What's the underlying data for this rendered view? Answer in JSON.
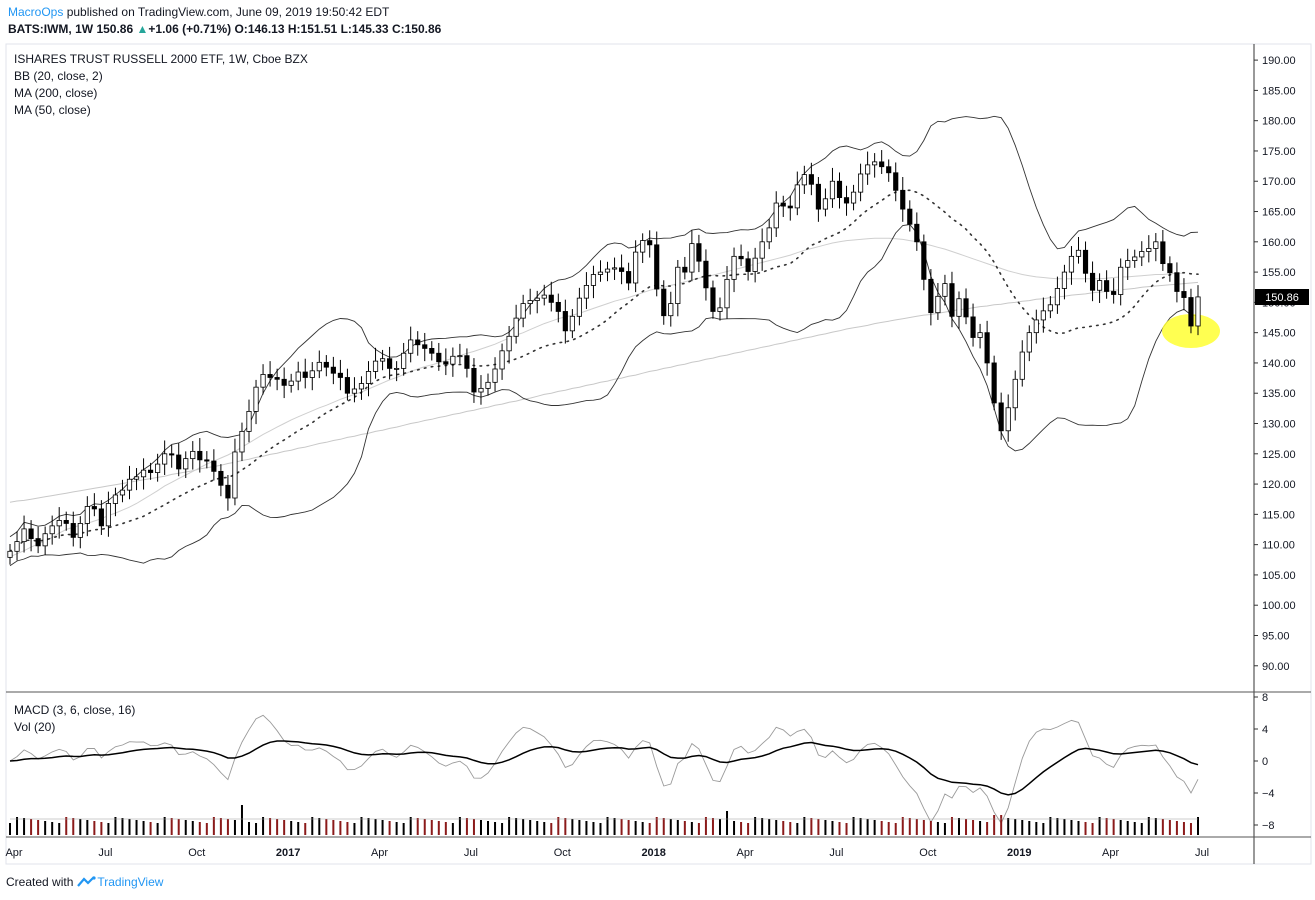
{
  "header": {
    "publisher": "MacroOps",
    "published_text": "published on TradingView.com, June 09, 2019 19:50:42 EDT",
    "symbol": "BATS:IWM, 1W",
    "last": "150.86",
    "change_arrow": "▲",
    "change": "+1.06 (+0.71%)",
    "o_label": "O:",
    "o": "146.13",
    "h_label": "H:",
    "h": "151.51",
    "l_label": "L:",
    "l": "145.33",
    "c_label": "C:",
    "c": "150.86"
  },
  "legend": {
    "title": "ISHARES TRUST RUSSELL 2000 ETF, 1W, Cboe BZX",
    "bb": "BB (20, close, 2)",
    "ma200": "MA (200, close)",
    "ma50": "MA (50, close)",
    "macd": "MACD (3, 6, close, 16)",
    "vol": "Vol (20)"
  },
  "footer": {
    "created_with": "Created with",
    "brand": "TradingView"
  },
  "colors": {
    "up_volume": "#000000",
    "down_volume": "#8b1a1a",
    "highlight": "#ffff33",
    "price_label_bg": "#000000"
  },
  "chart_data": {
    "type": "candlestick",
    "price_axis": {
      "range": [
        86,
        192
      ],
      "ticks": [
        "190.00",
        "185.00",
        "180.00",
        "175.00",
        "170.00",
        "165.00",
        "160.00",
        "155.00",
        "150.00",
        "145.00",
        "140.00",
        "135.00",
        "130.00",
        "125.00",
        "120.00",
        "115.00",
        "110.00",
        "105.00",
        "100.00",
        "95.00",
        "90.00"
      ],
      "last_price_label": "150.86"
    },
    "macd_axis": {
      "range": [
        -9,
        8
      ],
      "ticks": [
        "8",
        "4",
        "0",
        "−4",
        "−8"
      ]
    },
    "time_axis": {
      "labels": [
        {
          "text": "Apr",
          "bold": false
        },
        {
          "text": "Jul",
          "bold": false
        },
        {
          "text": "Oct",
          "bold": false
        },
        {
          "text": "2017",
          "bold": true
        },
        {
          "text": "Apr",
          "bold": false
        },
        {
          "text": "Jul",
          "bold": false
        },
        {
          "text": "Oct",
          "bold": false
        },
        {
          "text": "2018",
          "bold": true
        },
        {
          "text": "Apr",
          "bold": false
        },
        {
          "text": "Jul",
          "bold": false
        },
        {
          "text": "Oct",
          "bold": false
        },
        {
          "text": "2019",
          "bold": true
        },
        {
          "text": "Apr",
          "bold": false
        },
        {
          "text": "Jul",
          "bold": false
        }
      ],
      "weeks_offset": [
        0,
        13,
        26,
        39,
        52,
        65,
        78,
        91,
        104,
        117,
        130,
        143,
        156,
        169
      ]
    },
    "close_weekly": [
      108.9,
      110.5,
      112.6,
      111.0,
      109.8,
      111.8,
      113.1,
      114.0,
      113.5,
      111.2,
      113.5,
      116.3,
      115.9,
      113.1,
      116.8,
      118.2,
      119.0,
      120.8,
      121.2,
      122.3,
      121.9,
      123.3,
      125.0,
      124.8,
      122.5,
      124.2,
      125.4,
      124.0,
      123.8,
      122.1,
      119.8,
      117.7,
      125.3,
      128.7,
      132.0,
      136.0,
      138.1,
      137.6,
      137.3,
      136.3,
      137.0,
      138.5,
      137.6,
      138.7,
      140.1,
      139.3,
      138.3,
      137.6,
      135.0,
      135.7,
      136.6,
      138.6,
      140.3,
      140.7,
      139.1,
      139.1,
      141.6,
      143.8,
      143.0,
      142.4,
      141.6,
      140.2,
      139.8,
      141.1,
      141.2,
      139.1,
      135.2,
      135.8,
      136.8,
      139.0,
      142.0,
      144.4,
      147.4,
      149.8,
      150.3,
      150.7,
      151.2,
      150.0,
      148.5,
      145.3,
      147.7,
      150.7,
      152.8,
      154.6,
      155.0,
      155.5,
      155.7,
      155.1,
      153.2,
      158.3,
      160.2,
      159.5,
      152.2,
      147.8,
      149.8,
      155.8,
      155.0,
      159.7,
      156.8,
      152.4,
      148.5,
      149.1,
      153.8,
      157.6,
      157.2,
      155.1,
      157.3,
      160.0,
      162.3,
      166.4,
      165.9,
      165.6,
      169.4,
      171.1,
      169.5,
      165.4,
      167.1,
      170.0,
      167.3,
      166.4,
      168.2,
      171.2,
      172.7,
      173.2,
      172.4,
      171.4,
      168.5,
      165.4,
      162.9,
      160.0,
      153.8,
      148.3,
      151.0,
      153.1,
      147.7,
      150.6,
      147.6,
      144.2,
      145.0,
      140.0,
      133.4,
      128.8,
      132.6,
      137.3,
      141.8,
      145.0,
      147.1,
      148.6,
      149.6,
      152.3,
      155.0,
      157.6,
      158.6,
      154.8,
      152.0,
      153.6,
      151.8,
      151.3,
      155.8,
      156.9,
      157.5,
      158.4,
      158.9,
      160.0,
      156.4,
      154.9,
      151.8,
      150.8,
      146.1,
      150.9
    ],
    "ma50": [
      108,
      108.5,
      109,
      109.6,
      110.1,
      110.6,
      111.2,
      111.9,
      112.5,
      112.9,
      113.2,
      113.5,
      113.9,
      114.3,
      114.8,
      115.2,
      115.7,
      116.2,
      116.8,
      117.5,
      118.2,
      118.9,
      119.7,
      120.3,
      120.9,
      121.5,
      122.1,
      122.7,
      123.3,
      123.8,
      124.3,
      124.8,
      125.4,
      126.1,
      126.8,
      127.5,
      128.2,
      128.8,
      129.4,
      130.0,
      130.6,
      131.1,
      131.6,
      132.1,
      132.6,
      133.0,
      133.5,
      134.0,
      134.4,
      134.8,
      135.2,
      135.7,
      136.2,
      136.7,
      137.2,
      137.6,
      138.1,
      138.6,
      139.0,
      139.4,
      139.7,
      140.0,
      140.4,
      140.8,
      141.2,
      141.6,
      141.9,
      142.3,
      142.7,
      143.1,
      143.6,
      144.1,
      144.6,
      145.0,
      145.5,
      146.0,
      146.5,
      146.9,
      147.3,
      147.6,
      147.9,
      148.2,
      148.6,
      149.0,
      149.4,
      149.8,
      150.2,
      150.5,
      150.8,
      151.2,
      151.6,
      152.0,
      152.3,
      152.5,
      152.8,
      153.1,
      153.4,
      153.7,
      154.0,
      154.3,
      154.5,
      154.8,
      155.1,
      155.4,
      155.7,
      156.0,
      156.3,
      156.6,
      156.9,
      157.2,
      157.5,
      157.8,
      158.2,
      158.6,
      158.9,
      159.2,
      159.5,
      159.8,
      160.0,
      160.2,
      160.3,
      160.4,
      160.5,
      160.6,
      160.6,
      160.6,
      160.5,
      160.4,
      160.2,
      160.0,
      159.7,
      159.4,
      159.1,
      158.8,
      158.4,
      158.0,
      157.6,
      157.2,
      156.8,
      156.4,
      156.0,
      155.6,
      155.2,
      154.9,
      154.6,
      154.4,
      154.2,
      154.1,
      154.0,
      153.9,
      153.9,
      153.9,
      153.9,
      153.9,
      153.9,
      153.9,
      154.0,
      154.1,
      154.2,
      154.2,
      154.3,
      154.4,
      154.5,
      154.6,
      154.6,
      154.7,
      154.8,
      154.8
    ],
    "ma200": [
      117,
      117.2,
      117.3,
      117.5,
      117.7,
      117.9,
      118.1,
      118.3,
      118.5,
      118.7,
      118.9,
      119.1,
      119.3,
      119.5,
      119.7,
      119.9,
      120.1,
      120.3,
      120.5,
      120.7,
      120.9,
      121.1,
      121.3,
      121.6,
      121.8,
      122.0,
      122.2,
      122.5,
      122.7,
      122.9,
      123.1,
      123.4,
      123.6,
      123.9,
      124.1,
      124.4,
      124.6,
      124.9,
      125.1,
      125.4,
      125.6,
      125.9,
      126.1,
      126.4,
      126.7,
      126.9,
      127.2,
      127.4,
      127.7,
      127.9,
      128.2,
      128.4,
      128.7,
      128.9,
      129.2,
      129.4,
      129.7,
      130.0,
      130.2,
      130.5,
      130.7,
      131.0,
      131.2,
      131.5,
      131.7,
      132.0,
      132.2,
      132.5,
      132.7,
      133.0,
      133.2,
      133.5,
      133.7,
      134.0,
      134.2,
      134.5,
      134.8,
      135.0,
      135.3,
      135.5,
      135.8,
      136.0,
      136.3,
      136.5,
      136.8,
      137.0,
      137.3,
      137.5,
      137.8,
      138.0,
      138.3,
      138.6,
      138.8,
      139.1,
      139.3,
      139.6,
      139.8,
      140.1,
      140.3,
      140.6,
      140.8,
      141.1,
      141.3,
      141.6,
      141.8,
      142.1,
      142.3,
      142.6,
      142.8,
      143.1,
      143.3,
      143.6,
      143.8,
      144.1,
      144.3,
      144.6,
      144.8,
      145.1,
      145.3,
      145.6,
      145.8,
      146.0,
      146.2,
      146.5,
      146.7,
      146.9,
      147.1,
      147.3,
      147.5,
      147.7,
      147.9,
      148.0,
      148.2,
      148.4,
      148.6,
      148.8,
      148.9,
      149.1,
      149.3,
      149.4,
      149.6,
      149.7,
      149.9,
      150.0,
      150.2,
      150.3,
      150.5,
      150.6,
      150.8,
      150.9,
      151.0,
      151.2,
      151.3,
      151.4,
      151.6,
      151.7,
      151.8,
      152.0,
      152.1,
      152.2,
      152.3,
      152.5,
      152.6,
      152.7,
      152.8,
      152.9,
      153.0,
      153.1,
      153.2,
      153.3
    ],
    "annotation": {
      "type": "highlight-ellipse",
      "near": "last candles, ~145–148"
    }
  }
}
